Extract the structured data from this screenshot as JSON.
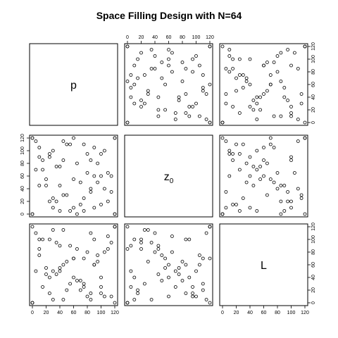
{
  "chart_data": {
    "type": "scatter",
    "title": "Space Filling Design with N=64",
    "variables": [
      {
        "name": "p",
        "subscript": ""
      },
      {
        "name": "z",
        "subscript": "0"
      },
      {
        "name": "L",
        "subscript": ""
      }
    ],
    "axis_range": [
      0,
      120
    ],
    "ticks": [
      0,
      20,
      40,
      60,
      80,
      100,
      120
    ],
    "tick_labels": [
      "0",
      "20",
      "40",
      "60",
      "80",
      "100",
      "120"
    ],
    "point_style": "open-circle",
    "grid": false,
    "points": {
      "p": [
        0,
        120,
        60,
        30,
        90,
        15,
        105,
        45,
        75,
        5,
        115,
        55,
        25,
        85,
        40,
        100,
        10,
        70,
        35,
        95,
        50,
        20,
        110,
        65,
        80,
        0,
        120,
        45,
        30,
        100,
        60,
        15,
        90,
        75,
        40,
        5,
        110,
        25,
        85,
        55,
        120,
        0,
        35,
        95,
        70,
        10,
        50,
        105,
        20,
        80,
        65,
        115,
        45,
        30,
        90,
        60,
        10,
        100,
        75,
        40,
        0,
        120,
        25,
        85
      ],
      "z0": [
        0,
        120,
        55,
        100,
        10,
        70,
        40,
        85,
        25,
        115,
        60,
        5,
        90,
        35,
        75,
        15,
        105,
        50,
        20,
        80,
        110,
        45,
        65,
        0,
        95,
        120,
        0,
        30,
        10,
        60,
        120,
        85,
        105,
        5,
        45,
        70,
        20,
        95,
        40,
        110,
        120,
        0,
        75,
        50,
        15,
        90,
        30,
        100,
        55,
        65,
        80,
        35,
        115,
        25,
        60,
        10,
        45,
        95,
        110,
        5,
        120,
        0,
        20,
        85
      ],
      "L": [
        0,
        120,
        70,
        50,
        100,
        25,
        80,
        60,
        30,
        110,
        10,
        90,
        40,
        5,
        55,
        15,
        75,
        35,
        95,
        65,
        20,
        45,
        105,
        85,
        10,
        120,
        0,
        115,
        5,
        40,
        70,
        100,
        60,
        25,
        90,
        50,
        85,
        15,
        110,
        30,
        120,
        0,
        45,
        75,
        20,
        100,
        65,
        10,
        55,
        80,
        35,
        95,
        5,
        115,
        60,
        40,
        85,
        25,
        70,
        50,
        0,
        120,
        100,
        15
      ]
    }
  }
}
